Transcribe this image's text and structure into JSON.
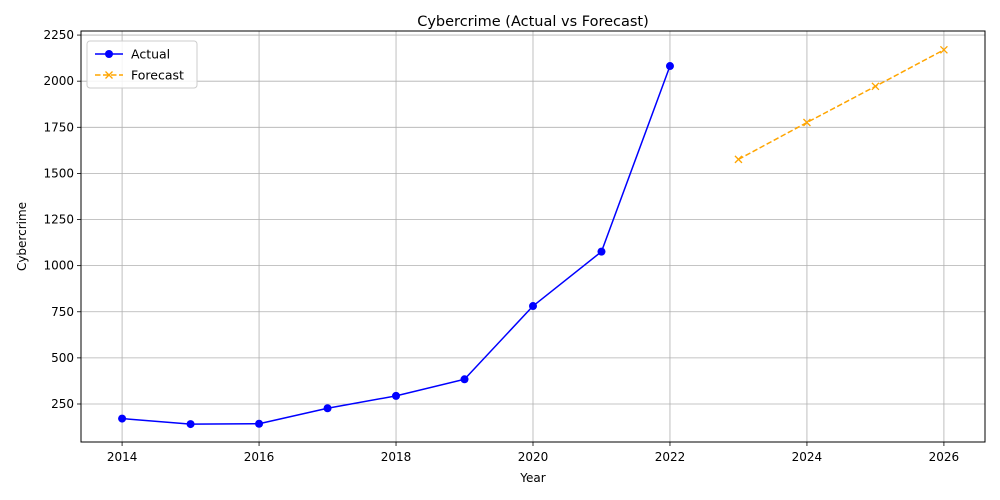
{
  "chart_data": {
    "type": "line",
    "title": "Cybercrime (Actual vs Forecast)",
    "xlabel": "Year",
    "ylabel": "Cybercrime",
    "xlim": [
      2013.4,
      2026.6
    ],
    "ylim": [
      44,
      2272
    ],
    "xticks": [
      2014,
      2016,
      2018,
      2020,
      2022,
      2024,
      2026
    ],
    "yticks": [
      250,
      500,
      750,
      1000,
      1250,
      1500,
      1750,
      2000,
      2250
    ],
    "grid": true,
    "legend_position": "top-left",
    "series": [
      {
        "name": "Actual",
        "color": "#0000ff",
        "line_style": "solid",
        "marker": "circle",
        "x": [
          2014,
          2015,
          2016,
          2017,
          2018,
          2019,
          2020,
          2021,
          2022
        ],
        "y": [
          171,
          141,
          143,
          227,
          294,
          384,
          781,
          1076,
          2082
        ]
      },
      {
        "name": "Forecast",
        "color": "#ffa500",
        "line_style": "dashed",
        "marker": "x",
        "x": [
          2023,
          2024,
          2025,
          2026
        ],
        "y": [
          1576,
          1776,
          1972,
          2170
        ]
      }
    ]
  }
}
